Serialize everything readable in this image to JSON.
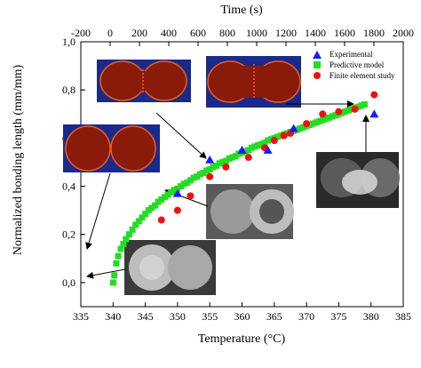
{
  "chart_data": {
    "type": "scatter",
    "title": "",
    "xlabel": "Temperature (°C)",
    "ylabel": "Normalized bonding length (mm/mm)",
    "x2label": "Time (s)",
    "xlim": [
      335,
      385
    ],
    "ylim": [
      -0.1,
      1.0
    ],
    "x2lim": [
      -200,
      2000
    ],
    "xticks": [
      "335",
      "340",
      "345",
      "350",
      "355",
      "360",
      "365",
      "370",
      "375",
      "380",
      "385"
    ],
    "yticks": [
      "0,0",
      "0,2",
      "0,4",
      "0,6",
      "0,8",
      "1,0"
    ],
    "x2ticks": [
      "-200",
      "0",
      "200",
      "400",
      "600",
      "800",
      "1000",
      "1200",
      "1400",
      "1600",
      "1800",
      "2000"
    ],
    "grid": false,
    "legend_position": "top-right",
    "series": [
      {
        "name": "Experimental",
        "marker": "triangle",
        "color": "#1a1aff",
        "x": [
          350.0,
          355.0,
          360.0,
          364.0,
          368.0,
          380.5
        ],
        "y": [
          0.37,
          0.51,
          0.55,
          0.55,
          0.64,
          0.7
        ]
      },
      {
        "name": "Predictive model",
        "marker": "square",
        "color": "#22dd22",
        "x": [
          340.0,
          340.2,
          340.5,
          340.8,
          341.2,
          341.6,
          342.0,
          342.5,
          343.0,
          343.5,
          344.0,
          344.5,
          345.0,
          345.5,
          346.0,
          346.5,
          347.0,
          347.5,
          348.0,
          348.5,
          349.0,
          349.5,
          350.0,
          350.5,
          351.0,
          351.5,
          352.0,
          352.5,
          353.0,
          353.5,
          354.0,
          354.5,
          355.0,
          355.5,
          356.0,
          356.5,
          357.0,
          357.5,
          358.0,
          358.5,
          359.0,
          359.5,
          360.0,
          360.5,
          361.0,
          361.5,
          362.0,
          362.5,
          363.0,
          363.5,
          364.0,
          364.5,
          365.0,
          365.5,
          366.0,
          366.5,
          367.0,
          367.5,
          368.0,
          368.5,
          369.0,
          369.5,
          370.0,
          370.5,
          371.0,
          371.5,
          372.0,
          372.5,
          373.0,
          373.5,
          374.0,
          374.5,
          375.0,
          375.5,
          376.0,
          376.5,
          377.0,
          377.5,
          378.0,
          378.5,
          379.0
        ],
        "y": [
          0.0,
          0.03,
          0.08,
          0.11,
          0.14,
          0.16,
          0.18,
          0.2,
          0.22,
          0.24,
          0.255,
          0.27,
          0.285,
          0.3,
          0.31,
          0.32,
          0.335,
          0.345,
          0.355,
          0.365,
          0.375,
          0.385,
          0.39,
          0.4,
          0.41,
          0.415,
          0.425,
          0.435,
          0.44,
          0.45,
          0.455,
          0.465,
          0.47,
          0.48,
          0.485,
          0.495,
          0.5,
          0.505,
          0.515,
          0.52,
          0.525,
          0.535,
          0.54,
          0.545,
          0.55,
          0.56,
          0.565,
          0.57,
          0.575,
          0.58,
          0.59,
          0.595,
          0.6,
          0.605,
          0.61,
          0.615,
          0.62,
          0.625,
          0.63,
          0.635,
          0.64,
          0.645,
          0.65,
          0.655,
          0.66,
          0.665,
          0.67,
          0.675,
          0.68,
          0.685,
          0.69,
          0.695,
          0.7,
          0.705,
          0.71,
          0.715,
          0.72,
          0.725,
          0.73,
          0.735,
          0.74
        ]
      },
      {
        "name": "Finite element study",
        "marker": "circle",
        "color": "#ee1111",
        "x": [
          347.5,
          350.0,
          352.0,
          355.0,
          357.5,
          361.0,
          363.5,
          365.0,
          366.5,
          367.5,
          370.0,
          372.5,
          375.0,
          377.5,
          380.5
        ],
        "y": [
          0.26,
          0.3,
          0.36,
          0.44,
          0.48,
          0.52,
          0.56,
          0.59,
          0.61,
          0.62,
          0.66,
          0.7,
          0.71,
          0.72,
          0.78
        ]
      }
    ]
  }
}
